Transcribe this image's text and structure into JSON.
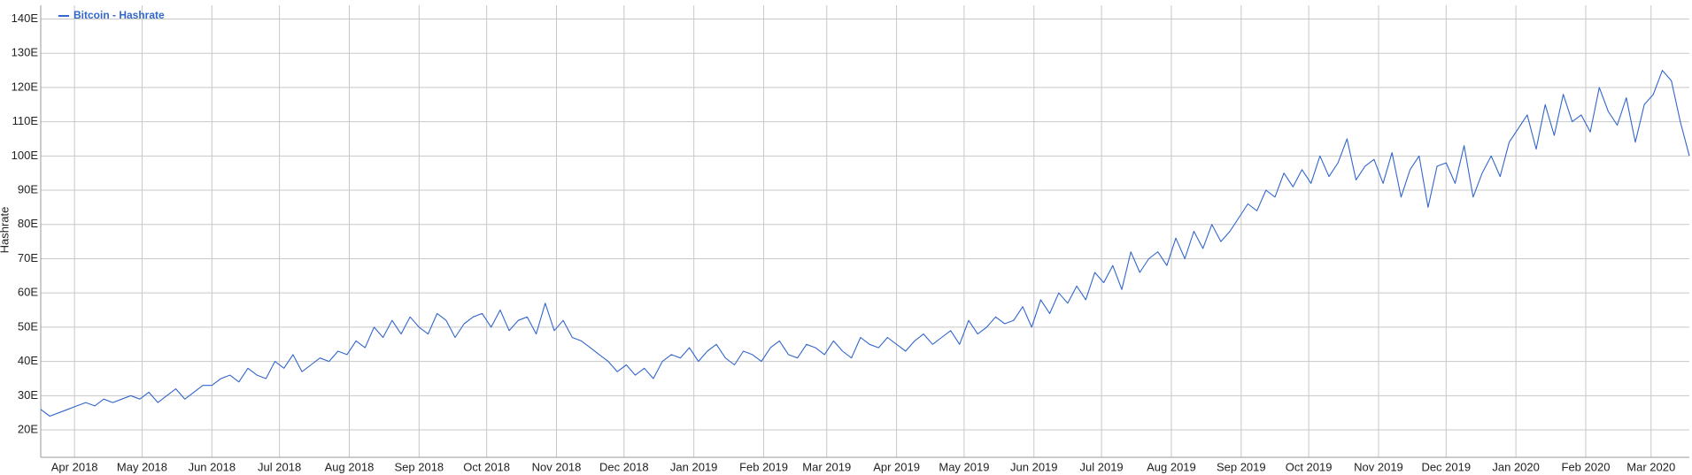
{
  "chart_data": {
    "type": "line",
    "legend": "top-left",
    "y_label": "Hashrate",
    "grid": true,
    "xlim": [
      0,
      732
    ],
    "xticks": [
      {
        "value": 15,
        "label": "Apr 2018"
      },
      {
        "value": 45,
        "label": "May 2018"
      },
      {
        "value": 76,
        "label": "Jun 2018"
      },
      {
        "value": 106,
        "label": "Jul 2018"
      },
      {
        "value": 137,
        "label": "Aug 2018"
      },
      {
        "value": 168,
        "label": "Sep 2018"
      },
      {
        "value": 198,
        "label": "Oct 2018"
      },
      {
        "value": 229,
        "label": "Nov 2018"
      },
      {
        "value": 259,
        "label": "Dec 2018"
      },
      {
        "value": 290,
        "label": "Jan 2019"
      },
      {
        "value": 321,
        "label": "Feb 2019"
      },
      {
        "value": 349,
        "label": "Mar 2019"
      },
      {
        "value": 380,
        "label": "Apr 2019"
      },
      {
        "value": 410,
        "label": "May 2019"
      },
      {
        "value": 441,
        "label": "Jun 2019"
      },
      {
        "value": 471,
        "label": "Jul 2019"
      },
      {
        "value": 502,
        "label": "Aug 2019"
      },
      {
        "value": 533,
        "label": "Sep 2019"
      },
      {
        "value": 563,
        "label": "Oct 2019"
      },
      {
        "value": 594,
        "label": "Nov 2019"
      },
      {
        "value": 624,
        "label": "Dec 2019"
      },
      {
        "value": 655,
        "label": "Jan 2020"
      },
      {
        "value": 686,
        "label": "Feb 2020"
      },
      {
        "value": 715,
        "label": "Mar 2020"
      }
    ],
    "ylim": [
      12,
      144
    ],
    "yticks": [
      {
        "value": 20,
        "label": "20E"
      },
      {
        "value": 30,
        "label": "30E"
      },
      {
        "value": 40,
        "label": "40E"
      },
      {
        "value": 50,
        "label": "50E"
      },
      {
        "value": 60,
        "label": "60E"
      },
      {
        "value": 70,
        "label": "70E"
      },
      {
        "value": 80,
        "label": "80E"
      },
      {
        "value": 90,
        "label": "90E"
      },
      {
        "value": 100,
        "label": "100E"
      },
      {
        "value": 110,
        "label": "110E"
      },
      {
        "value": 120,
        "label": "120E"
      },
      {
        "value": 130,
        "label": "130E"
      },
      {
        "value": 140,
        "label": "140E"
      }
    ],
    "x": [
      0,
      4,
      8,
      12,
      16,
      20,
      24,
      28,
      32,
      36,
      40,
      44,
      48,
      52,
      56,
      60,
      64,
      68,
      72,
      76,
      80,
      84,
      88,
      92,
      96,
      100,
      104,
      108,
      112,
      116,
      120,
      124,
      128,
      132,
      136,
      140,
      144,
      148,
      152,
      156,
      160,
      164,
      168,
      172,
      176,
      180,
      184,
      188,
      192,
      196,
      200,
      204,
      208,
      212,
      216,
      220,
      224,
      228,
      232,
      236,
      240,
      244,
      248,
      252,
      256,
      260,
      264,
      268,
      272,
      276,
      280,
      284,
      288,
      292,
      296,
      300,
      304,
      308,
      312,
      316,
      320,
      324,
      328,
      332,
      336,
      340,
      344,
      348,
      352,
      356,
      360,
      364,
      368,
      372,
      376,
      380,
      384,
      388,
      392,
      396,
      400,
      404,
      408,
      412,
      416,
      420,
      424,
      428,
      432,
      436,
      440,
      444,
      448,
      452,
      456,
      460,
      464,
      468,
      472,
      476,
      480,
      484,
      488,
      492,
      496,
      500,
      504,
      508,
      512,
      516,
      520,
      524,
      528,
      532,
      536,
      540,
      544,
      548,
      552,
      556,
      560,
      564,
      568,
      572,
      576,
      580,
      584,
      588,
      592,
      596,
      600,
      604,
      608,
      612,
      616,
      620,
      624,
      628,
      632,
      636,
      640,
      644,
      648,
      652,
      656,
      660,
      664,
      668,
      672,
      676,
      680,
      684,
      688,
      692,
      696,
      700,
      704,
      708,
      712,
      716,
      720,
      724,
      728,
      732
    ],
    "series": [
      {
        "name": "Bitcoin - Hashrate",
        "color": "#3366cc",
        "values": [
          26,
          24,
          25,
          26,
          27,
          28,
          27,
          29,
          28,
          29,
          30,
          29,
          31,
          28,
          30,
          32,
          29,
          31,
          33,
          33,
          35,
          36,
          34,
          38,
          36,
          35,
          40,
          38,
          42,
          37,
          39,
          41,
          40,
          43,
          42,
          46,
          44,
          50,
          47,
          52,
          48,
          53,
          50,
          48,
          54,
          52,
          47,
          51,
          53,
          54,
          50,
          55,
          49,
          52,
          53,
          48,
          57,
          49,
          52,
          47,
          46,
          44,
          42,
          40,
          37,
          39,
          36,
          38,
          35,
          40,
          42,
          41,
          44,
          40,
          43,
          45,
          41,
          39,
          43,
          42,
          40,
          44,
          46,
          42,
          41,
          45,
          44,
          42,
          46,
          43,
          41,
          47,
          45,
          44,
          47,
          45,
          43,
          46,
          48,
          45,
          47,
          49,
          45,
          52,
          48,
          50,
          53,
          51,
          52,
          56,
          50,
          58,
          54,
          60,
          57,
          62,
          58,
          66,
          63,
          68,
          61,
          72,
          66,
          70,
          72,
          68,
          76,
          70,
          78,
          73,
          80,
          75,
          78,
          82,
          86,
          84,
          90,
          88,
          95,
          91,
          96,
          92,
          100,
          94,
          98,
          105,
          93,
          97,
          99,
          92,
          101,
          88,
          96,
          100,
          85,
          97,
          98,
          92,
          103,
          88,
          95,
          100,
          94,
          104,
          108,
          112,
          102,
          115,
          106,
          118,
          110,
          112,
          107,
          120,
          113,
          109,
          117,
          104,
          115,
          118,
          125,
          122,
          110,
          100
        ]
      }
    ]
  }
}
